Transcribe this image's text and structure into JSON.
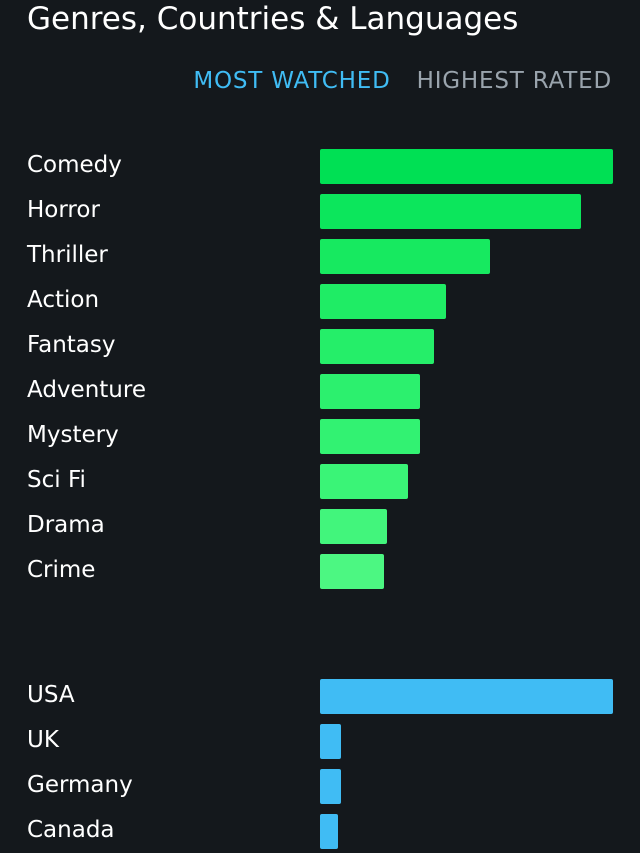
{
  "header": {
    "title": "Genres, Countries & Languages"
  },
  "tabs": [
    {
      "label": "MOST WATCHED",
      "active": true
    },
    {
      "label": "HIGHEST RATED",
      "active": false
    }
  ],
  "colors": {
    "active_tab": "#40bcf4",
    "inactive_tab": "#9aa4ad",
    "country_bar": "#40bcf4"
  },
  "genres": [
    {
      "label": "Comedy",
      "share": 1.0,
      "color": "#00e054"
    },
    {
      "label": "Horror",
      "share": 0.89,
      "color": "#0ce65c"
    },
    {
      "label": "Thriller",
      "share": 0.58,
      "color": "#17e960"
    },
    {
      "label": "Action",
      "share": 0.43,
      "color": "#1fec65"
    },
    {
      "label": "Fantasy",
      "share": 0.39,
      "color": "#25ee69"
    },
    {
      "label": "Adventure",
      "share": 0.34,
      "color": "#2cf06e"
    },
    {
      "label": "Mystery",
      "share": 0.34,
      "color": "#32f272"
    },
    {
      "label": "Sci Fi",
      "share": 0.3,
      "color": "#3af477"
    },
    {
      "label": "Drama",
      "share": 0.23,
      "color": "#42f57c"
    },
    {
      "label": "Crime",
      "share": 0.22,
      "color": "#4cf782"
    }
  ],
  "countries": [
    {
      "label": "USA",
      "share": 1.0
    },
    {
      "label": "UK",
      "share": 0.07
    },
    {
      "label": "Germany",
      "share": 0.07
    },
    {
      "label": "Canada",
      "share": 0.06
    }
  ]
}
